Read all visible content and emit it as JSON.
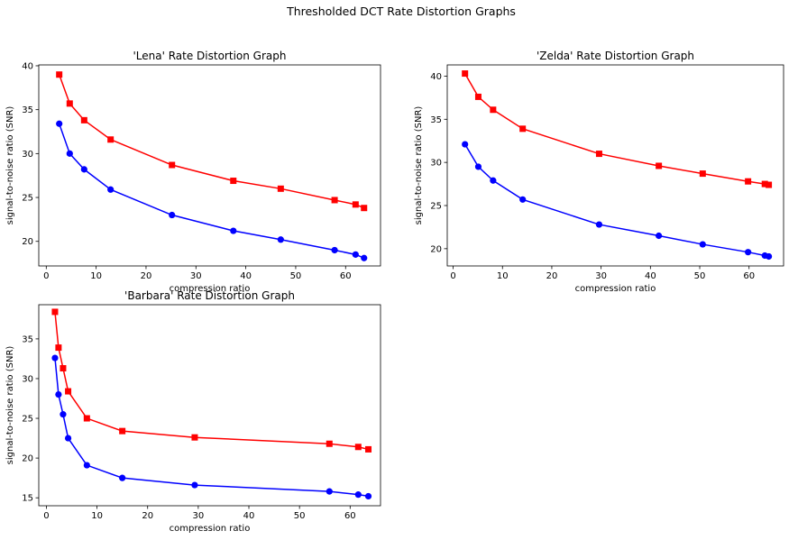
{
  "suptitle": "Thresholded DCT Rate Distortion Graphs",
  "chart_data": [
    {
      "type": "line",
      "title": "'Lena' Rate Distortion Graph",
      "xlabel": "compression ratio",
      "ylabel": "signal-to-noise ratio (SNR)",
      "xlim": [
        -1.5,
        67
      ],
      "ylim": [
        17.2,
        40.1
      ],
      "xticks": [
        0,
        10,
        20,
        30,
        40,
        50,
        60
      ],
      "yticks": [
        20,
        25,
        30,
        35,
        40
      ],
      "grid": false,
      "series": [
        {
          "color": "#ff0000",
          "marker": "square",
          "x": [
            2.6,
            4.7,
            7.6,
            12.9,
            25.2,
            37.5,
            47.0,
            57.8,
            62.0,
            63.7
          ],
          "y": [
            39.0,
            35.7,
            33.8,
            31.6,
            28.7,
            26.9,
            26.0,
            24.7,
            24.2,
            23.8
          ]
        },
        {
          "color": "#0000ff",
          "marker": "circle",
          "x": [
            2.6,
            4.7,
            7.6,
            12.9,
            25.2,
            37.5,
            47.0,
            57.8,
            62.0,
            63.7
          ],
          "y": [
            33.4,
            30.0,
            28.2,
            25.9,
            23.0,
            21.2,
            20.2,
            19.0,
            18.5,
            18.1
          ]
        }
      ]
    },
    {
      "type": "line",
      "title": "'Zelda' Rate Distortion Graph",
      "xlabel": "compression ratio",
      "ylabel": "signal-to-noise ratio (SNR)",
      "xlim": [
        -1.2,
        67
      ],
      "ylim": [
        18.0,
        41.3
      ],
      "xticks": [
        0,
        10,
        20,
        30,
        40,
        50,
        60
      ],
      "yticks": [
        20,
        25,
        30,
        35,
        40
      ],
      "grid": false,
      "series": [
        {
          "color": "#ff0000",
          "marker": "square",
          "x": [
            2.4,
            5.1,
            8.1,
            14.1,
            29.6,
            41.7,
            50.6,
            59.8,
            63.2,
            64.0
          ],
          "y": [
            40.3,
            37.6,
            36.1,
            33.9,
            31.0,
            29.6,
            28.7,
            27.8,
            27.5,
            27.4
          ]
        },
        {
          "color": "#0000ff",
          "marker": "circle",
          "x": [
            2.4,
            5.1,
            8.1,
            14.1,
            29.6,
            41.7,
            50.6,
            59.8,
            63.2,
            64.0
          ],
          "y": [
            32.1,
            29.5,
            27.9,
            25.7,
            22.8,
            21.5,
            20.5,
            19.6,
            19.2,
            19.1
          ]
        }
      ]
    },
    {
      "type": "line",
      "title": "'Barbara' Rate Distortion Graph",
      "xlabel": "compression ratio",
      "ylabel": "signal-to-noise ratio (SNR)",
      "xlim": [
        -1.5,
        66
      ],
      "ylim": [
        14.0,
        39.3
      ],
      "xticks": [
        0,
        10,
        20,
        30,
        40,
        50,
        60
      ],
      "yticks": [
        15,
        20,
        25,
        30,
        35
      ],
      "grid": false,
      "series": [
        {
          "color": "#ff0000",
          "marker": "square",
          "x": [
            1.7,
            2.4,
            3.3,
            4.3,
            8.0,
            15.0,
            29.3,
            55.9,
            61.6,
            63.6
          ],
          "y": [
            38.4,
            33.9,
            31.3,
            28.4,
            25.0,
            23.4,
            22.6,
            21.8,
            21.4,
            21.1
          ]
        },
        {
          "color": "#0000ff",
          "marker": "circle",
          "x": [
            1.7,
            2.4,
            3.3,
            4.3,
            8.0,
            15.0,
            29.3,
            55.9,
            61.6,
            63.6
          ],
          "y": [
            32.6,
            28.0,
            25.5,
            22.5,
            19.1,
            17.5,
            16.6,
            15.8,
            15.4,
            15.2
          ]
        }
      ]
    }
  ]
}
